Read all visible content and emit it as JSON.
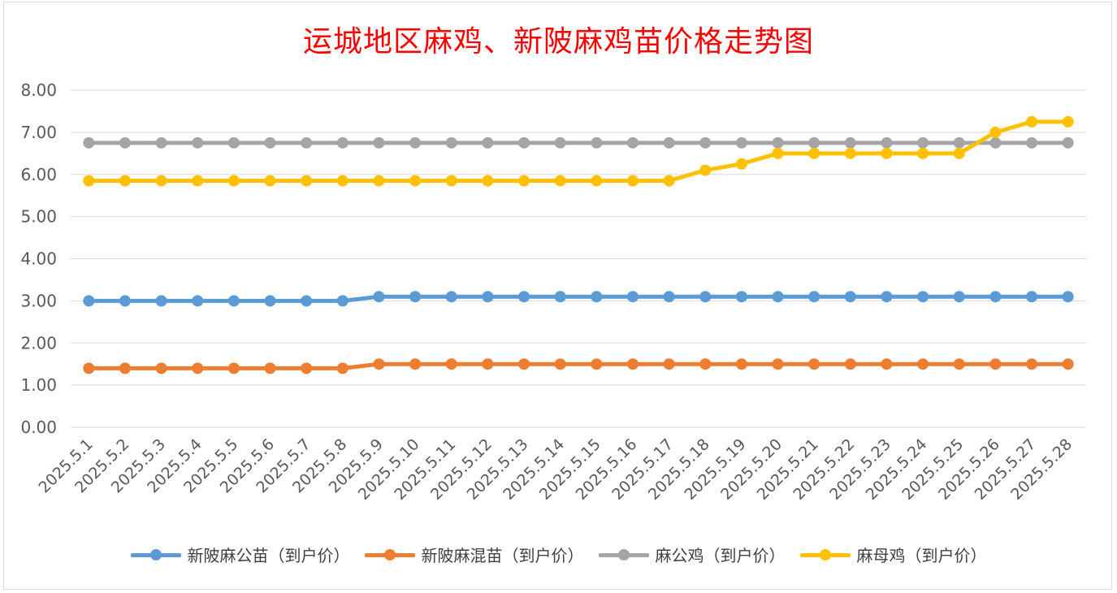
{
  "chart_data": {
    "type": "line",
    "title": "运城地区麻鸡、新陂麻鸡苗价格走势图",
    "xlabel": "",
    "ylabel": "",
    "ylim": [
      0,
      8
    ],
    "yticks": [
      "0.00",
      "1.00",
      "2.00",
      "3.00",
      "4.00",
      "5.00",
      "6.00",
      "7.00",
      "8.00"
    ],
    "grid": true,
    "legend_position": "bottom",
    "categories": [
      "2025.5.1",
      "2025.5.2",
      "2025.5.3",
      "2025.5.4",
      "2025.5.5",
      "2025.5.6",
      "2025.5.7",
      "2025.5.8",
      "2025.5.9",
      "2025.5.10",
      "2025.5.11",
      "2025.5.12",
      "2025.5.13",
      "2025.5.14",
      "2025.5.15",
      "2025.5.16",
      "2025.5.17",
      "2025.5.18",
      "2025.5.19",
      "2025.5.20",
      "2025.5.21",
      "2025.5.22",
      "2025.5.23",
      "2025.5.24",
      "2025.5.25",
      "2025.5.26",
      "2025.5.27",
      "2025.5.28"
    ],
    "series": [
      {
        "name": "新陂麻公苗（到户价）",
        "color": "#5b9bd5",
        "values": [
          3.0,
          3.0,
          3.0,
          3.0,
          3.0,
          3.0,
          3.0,
          3.0,
          3.1,
          3.1,
          3.1,
          3.1,
          3.1,
          3.1,
          3.1,
          3.1,
          3.1,
          3.1,
          3.1,
          3.1,
          3.1,
          3.1,
          3.1,
          3.1,
          3.1,
          3.1,
          3.1,
          3.1
        ]
      },
      {
        "name": "新陂麻混苗（到户价）",
        "color": "#ed7d31",
        "values": [
          1.4,
          1.4,
          1.4,
          1.4,
          1.4,
          1.4,
          1.4,
          1.4,
          1.5,
          1.5,
          1.5,
          1.5,
          1.5,
          1.5,
          1.5,
          1.5,
          1.5,
          1.5,
          1.5,
          1.5,
          1.5,
          1.5,
          1.5,
          1.5,
          1.5,
          1.5,
          1.5,
          1.5
        ]
      },
      {
        "name": "麻公鸡（到户价）",
        "color": "#a5a5a5",
        "values": [
          6.75,
          6.75,
          6.75,
          6.75,
          6.75,
          6.75,
          6.75,
          6.75,
          6.75,
          6.75,
          6.75,
          6.75,
          6.75,
          6.75,
          6.75,
          6.75,
          6.75,
          6.75,
          6.75,
          6.75,
          6.75,
          6.75,
          6.75,
          6.75,
          6.75,
          6.75,
          6.75,
          6.75
        ]
      },
      {
        "name": "麻母鸡（到户价）",
        "color": "#ffc000",
        "values": [
          5.85,
          5.85,
          5.85,
          5.85,
          5.85,
          5.85,
          5.85,
          5.85,
          5.85,
          5.85,
          5.85,
          5.85,
          5.85,
          5.85,
          5.85,
          5.85,
          5.85,
          6.1,
          6.25,
          6.5,
          6.5,
          6.5,
          6.5,
          6.5,
          6.5,
          7.0,
          7.25,
          7.25
        ]
      }
    ]
  }
}
